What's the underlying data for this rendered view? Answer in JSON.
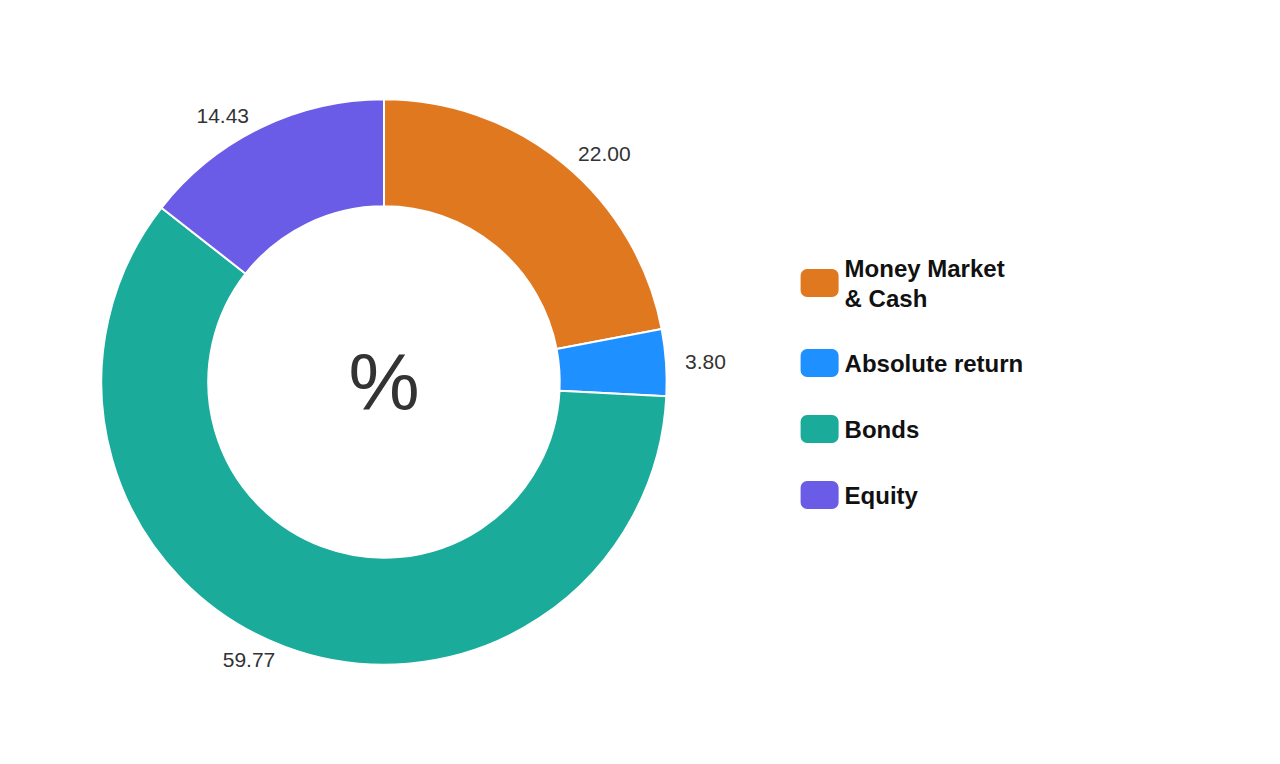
{
  "chart_data": {
    "type": "pie",
    "categories": [
      "Money Market\n& Cash",
      "Absolute return",
      "Bonds",
      "Equity"
    ],
    "values": [
      22.0,
      3.8,
      59.77,
      14.43
    ],
    "value_labels": [
      "22.00",
      "3.80",
      "59.77",
      "14.43"
    ],
    "colors": [
      "#e07820",
      "#1e90ff",
      "#1aab9b",
      "#6b5ce7"
    ],
    "annotations": [
      "%"
    ],
    "data_labels": true,
    "legend": "right"
  }
}
